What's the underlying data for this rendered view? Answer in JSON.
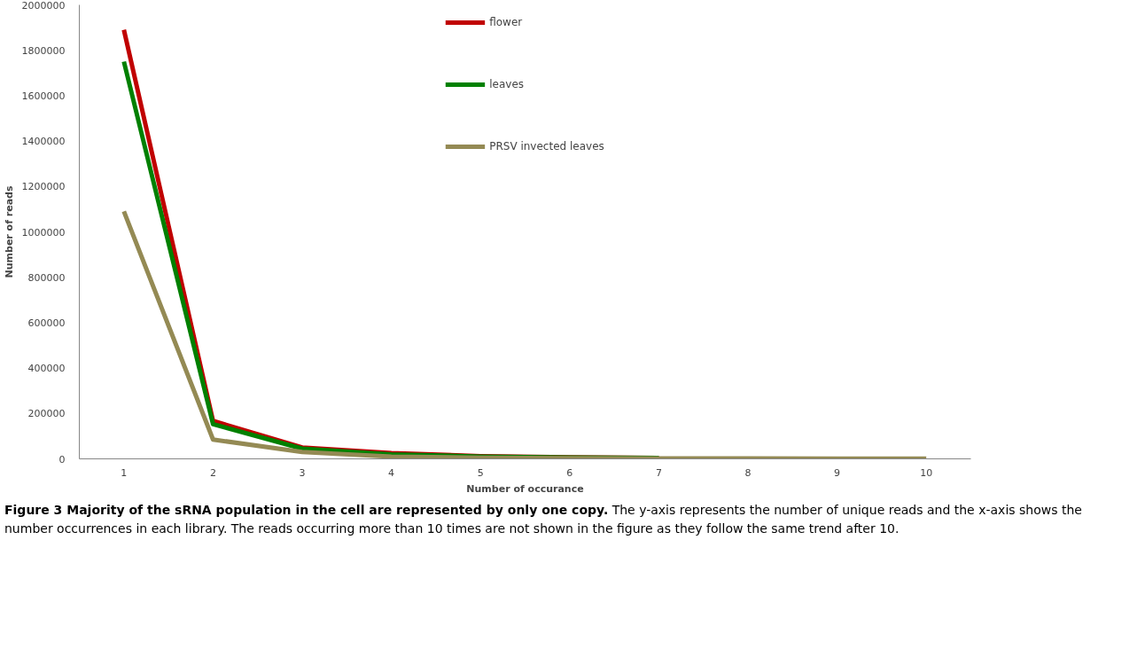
{
  "chart_data": {
    "type": "line",
    "xlabel": "Number of occurance",
    "ylabel": "Number of reads",
    "categories": [
      "1",
      "2",
      "3",
      "4",
      "5",
      "6",
      "7",
      "8",
      "9",
      "10"
    ],
    "series": [
      {
        "name": "flower",
        "color": "#c00000",
        "values": [
          1890000,
          167000,
          50000,
          25000,
          12000,
          7000,
          4000,
          null,
          null,
          null
        ]
      },
      {
        "name": "leaves",
        "color": "#008000",
        "values": [
          1750000,
          153000,
          45000,
          20000,
          10000,
          6000,
          4000,
          null,
          null,
          null
        ]
      },
      {
        "name": "PRSV invected leaves",
        "color": "#948a54",
        "values": [
          1090000,
          85000,
          30000,
          10000,
          5000,
          3000,
          2000,
          2000,
          1000,
          1000
        ]
      }
    ],
    "ylim": [
      0,
      2000000
    ],
    "yticks": [
      0,
      200000,
      400000,
      600000,
      800000,
      1000000,
      1200000,
      1400000,
      1600000,
      1800000,
      2000000
    ],
    "grid": false,
    "legend": "top",
    "marker": "none",
    "line_style": "solid",
    "annotations": [
      "Figure 3 Majority of the sRNA population in the cell are represented by only one copy.",
      "The y-axis represents the number of unique reads and the x-axis shows the number occurrences in each library. The reads occurring more than 10 times are not shown in the figure as they follow the same trend after 10."
    ]
  }
}
